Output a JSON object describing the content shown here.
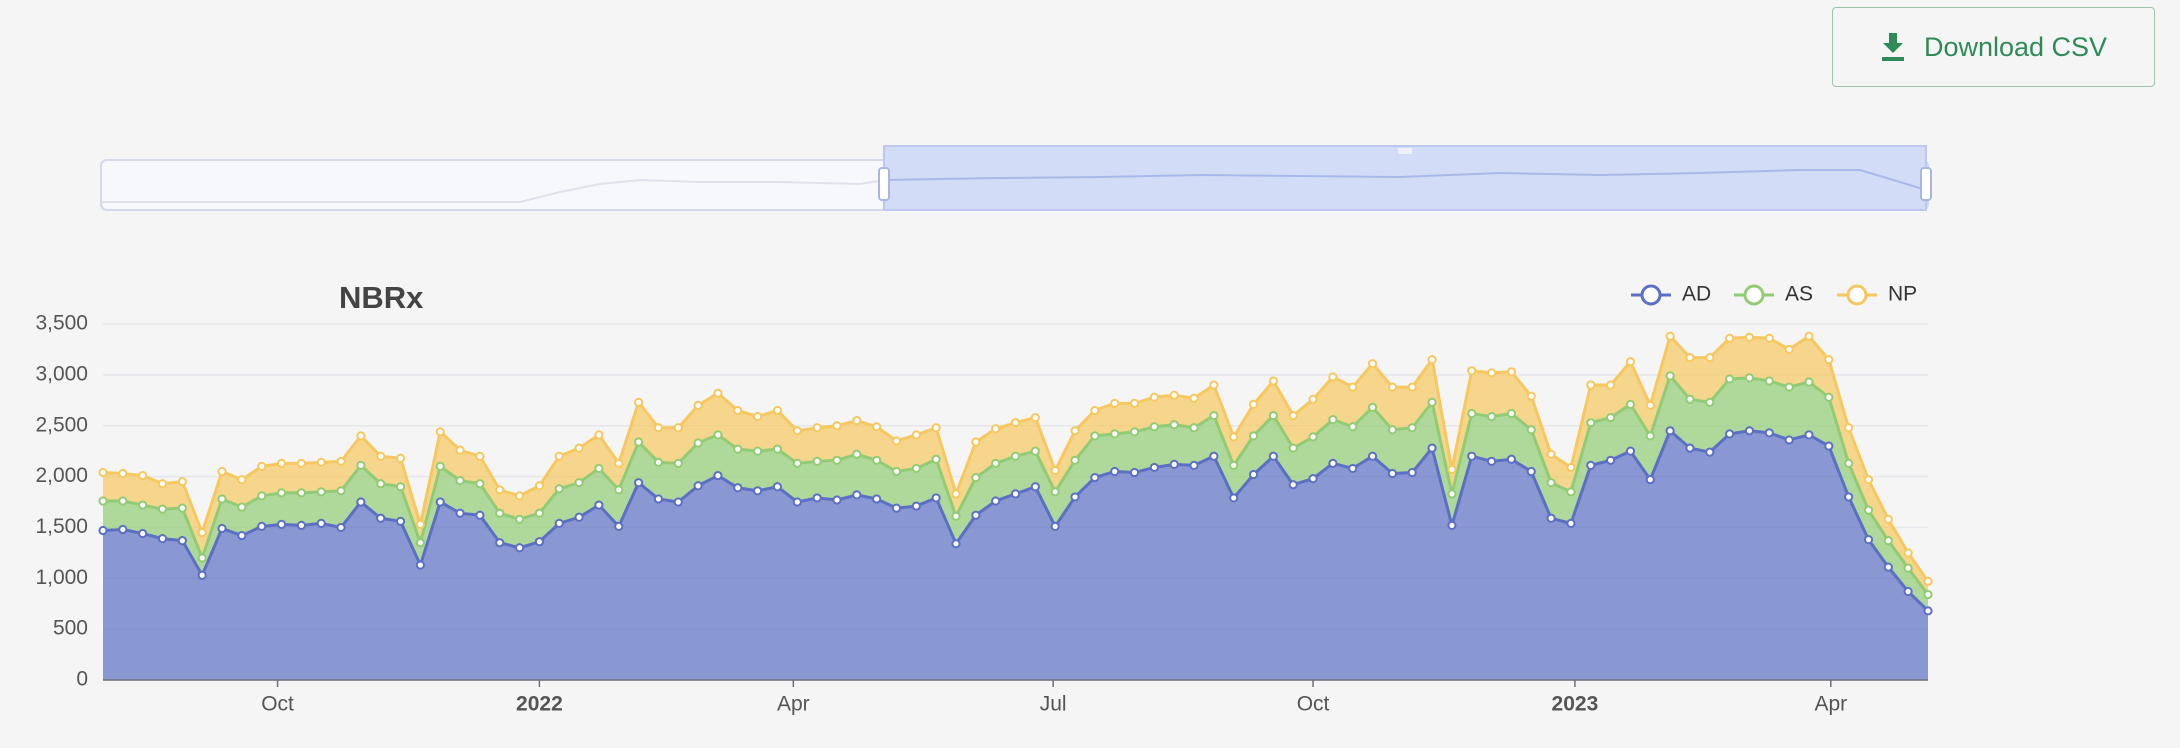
{
  "button": {
    "label": "Download CSV"
  },
  "chart_data": {
    "type": "stacked-area",
    "title": "NBRx",
    "categories": [
      null,
      null,
      null,
      null,
      null,
      null,
      null,
      null,
      null,
      null,
      null,
      null,
      null,
      null,
      null,
      null,
      null,
      null,
      null,
      null,
      null,
      null,
      null,
      null,
      null,
      null,
      null,
      null,
      null,
      null,
      null,
      null,
      null,
      null,
      null,
      null,
      null,
      null,
      null,
      null,
      null,
      null,
      null,
      null,
      null,
      null,
      null,
      null,
      null,
      null,
      null,
      null,
      null,
      null,
      null,
      null,
      null,
      null,
      null,
      null,
      null,
      null,
      null,
      null,
      null,
      null,
      null,
      null,
      null,
      null,
      null,
      null,
      null,
      null,
      null,
      null,
      null,
      null,
      null,
      null,
      null,
      null,
      null,
      null,
      null,
      null,
      null,
      null,
      null,
      null,
      null,
      null,
      null
    ],
    "xlim": [
      0,
      92
    ],
    "xticks": [
      {
        "value": 8.8,
        "label": "Oct"
      },
      {
        "value": 22,
        "label": "2022"
      },
      {
        "value": 34.8,
        "label": "Apr"
      },
      {
        "value": 47.9,
        "label": "Jul"
      },
      {
        "value": 61,
        "label": "Oct"
      },
      {
        "value": 74.2,
        "label": "2023"
      },
      {
        "value": 87.1,
        "label": "Apr"
      }
    ],
    "ylim": [
      0,
      3500
    ],
    "yticks": [
      0,
      500,
      {
        "value": 1000,
        "label": "1,000"
      },
      {
        "value": 1500,
        "label": "1,500"
      },
      {
        "value": 2000,
        "label": "2,000"
      },
      {
        "value": 2500,
        "label": "2,500"
      },
      {
        "value": 3000,
        "label": "3,000"
      },
      {
        "value": 3500,
        "label": "3,500"
      }
    ],
    "grid": true,
    "legend": "top-right",
    "series": [
      {
        "name": "AD",
        "color": "#5b6fc4",
        "values": [
          1470,
          1480,
          1440,
          1390,
          1370,
          1030,
          1490,
          1420,
          1510,
          1530,
          1520,
          1540,
          1500,
          1750,
          1590,
          1560,
          1130,
          1750,
          1640,
          1620,
          1350,
          1300,
          1360,
          1540,
          1600,
          1720,
          1510,
          1940,
          1780,
          1750,
          1910,
          2010,
          1890,
          1860,
          1900,
          1750,
          1790,
          1770,
          1820,
          1780,
          1690,
          1710,
          1790,
          1340,
          1620,
          1760,
          1830,
          1900,
          1510,
          1800,
          1990,
          2050,
          2040,
          2090,
          2120,
          2110,
          2200,
          1790,
          2020,
          2200,
          1920,
          1980,
          2130,
          2080,
          2200,
          2030,
          2040,
          2280,
          1520,
          2200,
          2150,
          2170,
          2050,
          1590,
          1540,
          2110,
          2160,
          2250,
          1970,
          2450,
          2280,
          2240,
          2420,
          2450,
          2430,
          2360,
          2410,
          2300,
          1800,
          1380,
          1110,
          870,
          680
        ]
      },
      {
        "name": "AS",
        "color": "#91cc75",
        "values": [
          290,
          280,
          280,
          290,
          320,
          170,
          290,
          280,
          300,
          310,
          320,
          310,
          360,
          360,
          340,
          340,
          220,
          350,
          320,
          310,
          290,
          280,
          280,
          340,
          340,
          360,
          360,
          400,
          360,
          380,
          420,
          400,
          380,
          390,
          370,
          380,
          360,
          390,
          400,
          380,
          360,
          370,
          380,
          270,
          370,
          370,
          370,
          350,
          340,
          360,
          410,
          370,
          400,
          400,
          390,
          370,
          400,
          320,
          380,
          400,
          360,
          410,
          430,
          410,
          480,
          430,
          440,
          450,
          310,
          420,
          440,
          450,
          410,
          350,
          310,
          420,
          420,
          460,
          430,
          540,
          480,
          490,
          540,
          520,
          510,
          520,
          520,
          480,
          330,
          290,
          260,
          230,
          160
        ]
      },
      {
        "name": "NP",
        "color": "#f6c85f",
        "values": [
          280,
          270,
          290,
          250,
          260,
          250,
          270,
          270,
          290,
          290,
          290,
          290,
          290,
          290,
          270,
          280,
          180,
          340,
          300,
          270,
          230,
          230,
          270,
          320,
          340,
          330,
          260,
          390,
          340,
          350,
          370,
          410,
          380,
          340,
          380,
          320,
          330,
          340,
          330,
          330,
          300,
          330,
          310,
          220,
          350,
          340,
          330,
          330,
          210,
          290,
          250,
          300,
          280,
          290,
          290,
          290,
          300,
          280,
          310,
          340,
          320,
          370,
          420,
          390,
          430,
          420,
          400,
          420,
          240,
          420,
          430,
          410,
          330,
          280,
          240,
          370,
          320,
          420,
          300,
          390,
          410,
          440,
          400,
          400,
          420,
          370,
          450,
          370,
          350,
          300,
          210,
          150,
          130
        ]
      }
    ]
  }
}
